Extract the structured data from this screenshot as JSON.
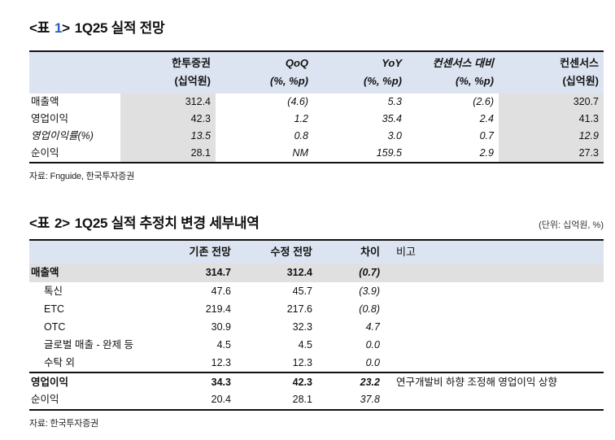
{
  "colors": {
    "accent_blue": "#2a5cc5",
    "header_bg": "#dce4f1",
    "shade_gray": "#e0e0e0"
  },
  "table1": {
    "title_open": "<표",
    "title_num": "1",
    "title_close": ">",
    "title_text": "1Q25 실적 전망",
    "columns": [
      {
        "line1": "한투증권",
        "line2": "(십억원)",
        "italic": false
      },
      {
        "line1": "QoQ",
        "line2": "(%, %p)",
        "italic": true
      },
      {
        "line1": "YoY",
        "line2": "(%, %p)",
        "italic": true
      },
      {
        "line1": "컨센서스 대비",
        "line2": "(%, %p)",
        "italic": true
      },
      {
        "line1": "컨센서스",
        "line2": "(십억원)",
        "italic": false
      }
    ],
    "rows": [
      {
        "label": "매출액",
        "values": [
          "312.4",
          "(4.6)",
          "5.3",
          "(2.6)",
          "320.7"
        ],
        "italic_row": false
      },
      {
        "label": "영업이익",
        "values": [
          "42.3",
          "1.2",
          "35.4",
          "2.4",
          "41.3"
        ],
        "italic_row": false
      },
      {
        "label": "영업이익률(%)",
        "values": [
          "13.5",
          "0.8",
          "3.0",
          "0.7",
          "12.9"
        ],
        "italic_row": true
      },
      {
        "label": "순이익",
        "values": [
          "28.1",
          "NM",
          "159.5",
          "2.9",
          "27.3"
        ],
        "italic_row": false
      }
    ],
    "source": "자료: Fnguide, 한국투자증권"
  },
  "table2": {
    "title_open": "<표",
    "title_num": "2",
    "title_close": ">",
    "title_text": "1Q25 실적 추정치 변경 세부내역",
    "unit_note": "(단위: 십억원, %)",
    "headers": {
      "prev": "기존 전망",
      "revised": "수정 전망",
      "diff": "차이",
      "note": "비고"
    },
    "rows": [
      {
        "label": "매출액",
        "prev": "314.7",
        "revised": "312.4",
        "diff": "(0.7)",
        "note": "",
        "style": "bold-shaded"
      },
      {
        "label": "톡신",
        "prev": "47.6",
        "revised": "45.7",
        "diff": "(3.9)",
        "note": "",
        "style": "sub"
      },
      {
        "label": "ETC",
        "prev": "219.4",
        "revised": "217.6",
        "diff": "(0.8)",
        "note": "",
        "style": "sub"
      },
      {
        "label": "OTC",
        "prev": "30.9",
        "revised": "32.3",
        "diff": "4.7",
        "note": "",
        "style": "sub"
      },
      {
        "label": "글로벌 매출 - 완제 등",
        "prev": "4.5",
        "revised": "4.5",
        "diff": "0.0",
        "note": "",
        "style": "sub"
      },
      {
        "label": "수탁 외",
        "prev": "12.3",
        "revised": "12.3",
        "diff": "0.0",
        "note": "",
        "style": "sub"
      },
      {
        "label": "영업이익",
        "prev": "34.3",
        "revised": "42.3",
        "diff": "23.2",
        "note": "연구개발비 하향 조정해 영업이익 상향",
        "style": "bold-topline"
      },
      {
        "label": "순이익",
        "prev": "20.4",
        "revised": "28.1",
        "diff": "37.8",
        "note": "",
        "style": "plain"
      }
    ],
    "source": "자료: 한국투자증권"
  }
}
